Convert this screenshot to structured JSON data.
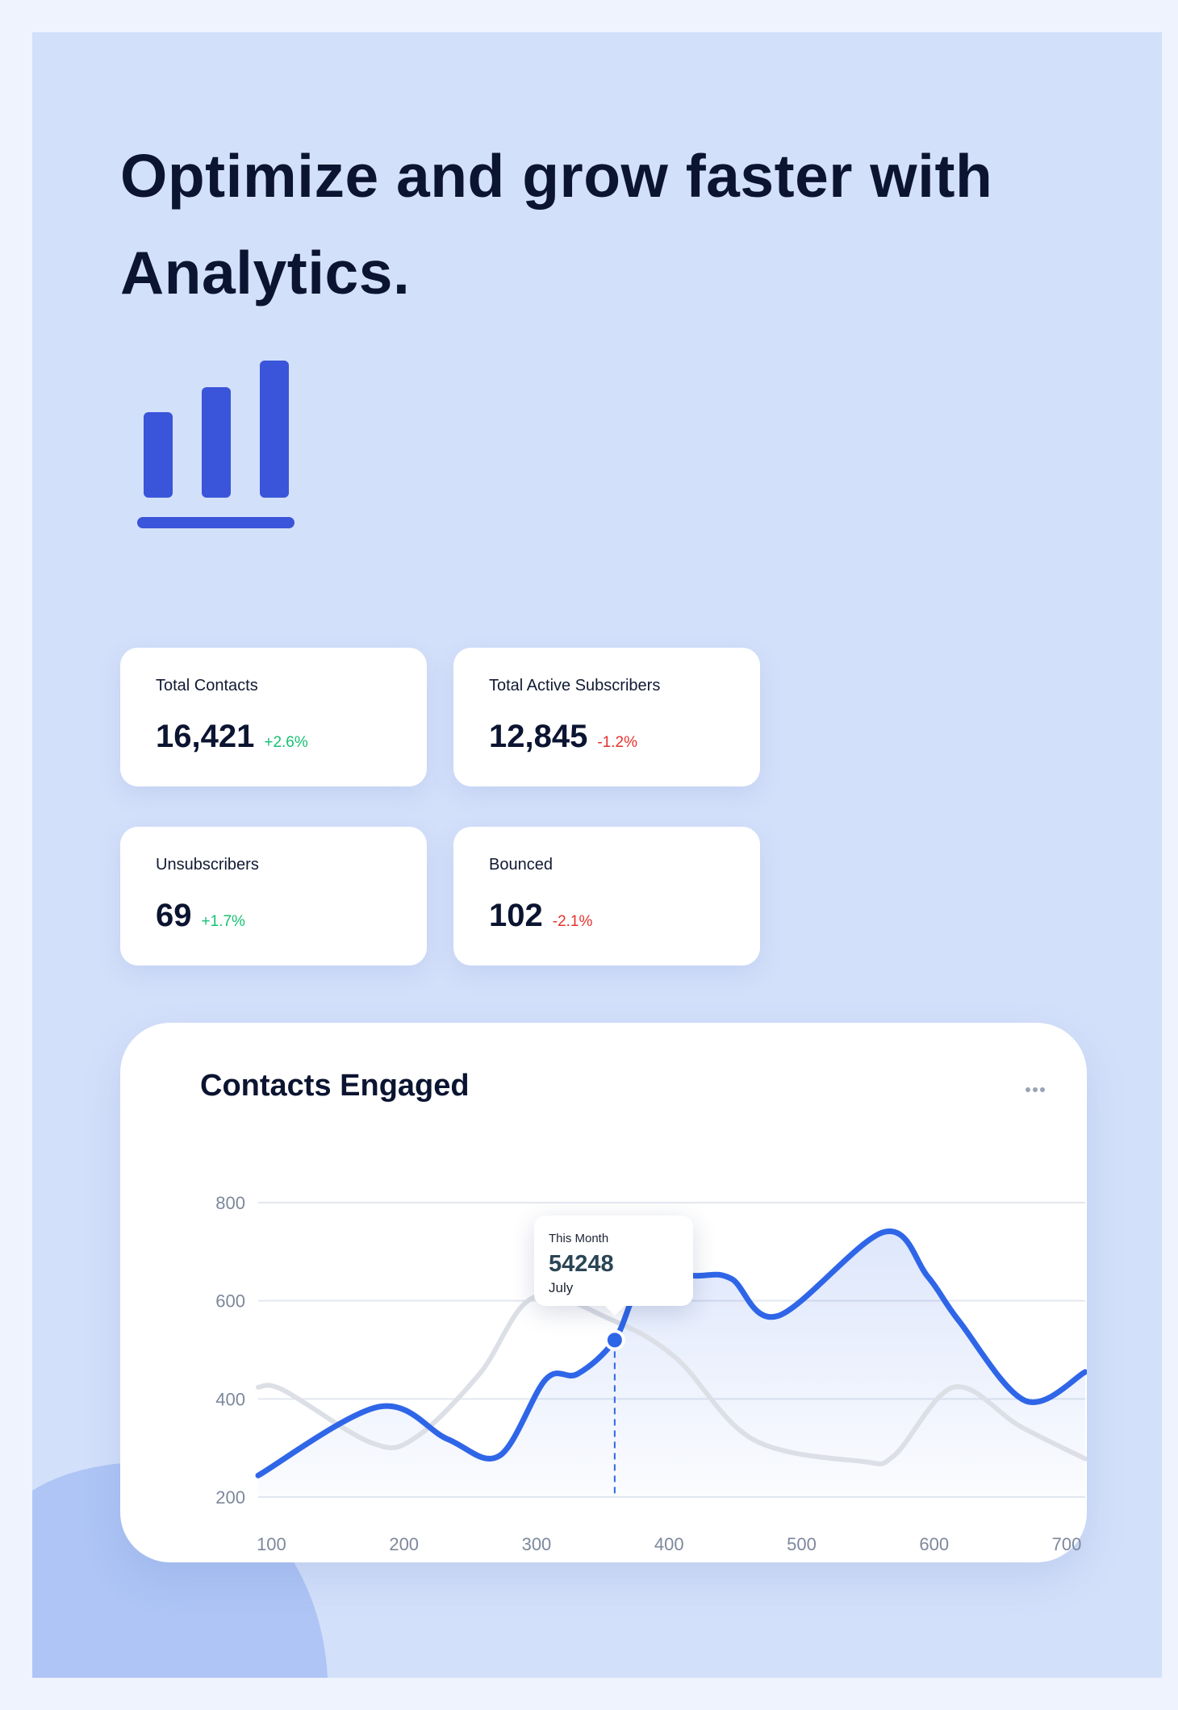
{
  "headline": "Optimize and grow faster with Analytics.",
  "logo_icon": "bar-chart-icon",
  "colors": {
    "accent": "#2f66e8",
    "icon": "#3a55d9",
    "positive": "#16c172",
    "negative": "#e5322d",
    "secondary_series": "#dcdfe6",
    "background": "#d3e0fa"
  },
  "stats": [
    {
      "label": "Total Contacts",
      "value": "16,421",
      "change": "+2.6%",
      "trend": "positive"
    },
    {
      "label": "Total Active Subscribers",
      "value": "12,845",
      "change": "-1.2%",
      "trend": "negative"
    },
    {
      "label": "Unsubscribers",
      "value": "69",
      "change": "+1.7%",
      "trend": "positive"
    },
    {
      "label": "Bounced",
      "value": "102",
      "change": "-2.1%",
      "trend": "negative"
    }
  ],
  "chart_card": {
    "title": "Contacts Engaged",
    "menu_icon": "ellipsis-icon",
    "tooltip": {
      "label": "This Month",
      "value": "54248",
      "month": "July"
    }
  },
  "chart_data": {
    "type": "line",
    "title": "Contacts Engaged",
    "xlim": [
      90,
      714
    ],
    "ylim": [
      200,
      800
    ],
    "x_ticks": [
      "100",
      "200",
      "300",
      "400",
      "500",
      "600",
      "700"
    ],
    "y_ticks": [
      "800",
      "600",
      "400",
      "200"
    ],
    "grid": true,
    "smooth": true,
    "series": [
      {
        "role": "primary",
        "color": "#2f66e8",
        "filled": true,
        "x": [
          90,
          181,
          233,
          272,
          307,
          331,
          359,
          381,
          422,
          447,
          482,
          562,
          595,
          619,
          669,
          714
        ],
        "y": [
          244,
          384,
          318,
          284,
          440,
          451,
          520,
          640,
          651,
          645,
          569,
          740,
          650,
          558,
          396,
          455
        ]
      },
      {
        "role": "secondary",
        "color": "#dcdfe6",
        "filled": false,
        "x": [
          90,
          109,
          175,
          208,
          257,
          298,
          356,
          405,
          463,
          545,
          570,
          615,
          665,
          714
        ],
        "y": [
          424,
          418,
          311,
          320,
          451,
          607,
          562,
          484,
          318,
          273,
          285,
          424,
          344,
          278
        ]
      }
    ],
    "highlight": {
      "x": 359,
      "y": 520
    }
  }
}
